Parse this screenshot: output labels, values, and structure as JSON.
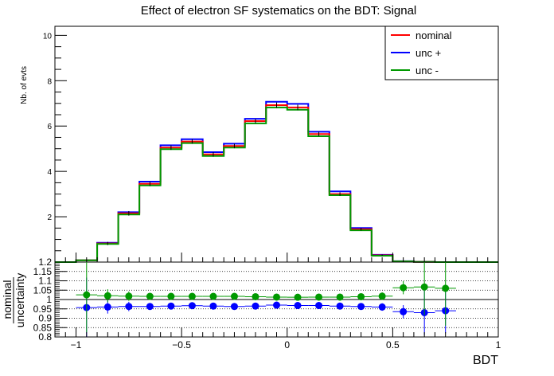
{
  "chart_data": {
    "type": "line",
    "title": "Effect of electron SF systematics on the BDT: Signal",
    "ylabel": "Nb. of evts",
    "xlabel": "BDT",
    "ratio_ylabel_num": "nominal",
    "ratio_ylabel_den": "uncertainty",
    "xlim": [
      -1.1,
      1.0
    ],
    "ylim": [
      0,
      10.4
    ],
    "ratio_ylim": [
      0.8,
      1.2
    ],
    "x_ticks": [
      -1,
      -0.5,
      0,
      0.5,
      1
    ],
    "x_tick_labels": [
      "−1",
      "−0.5",
      "0",
      "0.5",
      "1"
    ],
    "y_ticks": [
      2,
      4,
      6,
      8,
      10
    ],
    "y_tick_labels": [
      "2",
      "4",
      "6",
      "8",
      "10"
    ],
    "ratio_ticks": [
      0.8,
      0.85,
      0.9,
      0.95,
      1,
      1.05,
      1.1,
      1.15,
      1.2
    ],
    "ratio_tick_labels": [
      "0.8",
      "0.85",
      "0.9",
      "0.95",
      "1",
      "1.05",
      "1.1",
      "1.15",
      "1.2"
    ],
    "legend": {
      "position": "top-right",
      "entries": [
        "nominal",
        "unc +",
        "unc -"
      ]
    },
    "bin_edges": [
      -1.1,
      -1.0,
      -0.9,
      -0.8,
      -0.7,
      -0.6,
      -0.5,
      -0.4,
      -0.3,
      -0.2,
      -0.1,
      0.0,
      0.1,
      0.2,
      0.3,
      0.4,
      0.5,
      0.6,
      0.7,
      0.8,
      0.9,
      1.0
    ],
    "series": [
      {
        "name": "nominal",
        "color": "#ff0000",
        "values": [
          0.0,
          0.08,
          0.82,
          2.15,
          3.45,
          5.05,
          5.32,
          4.75,
          5.12,
          6.22,
          6.92,
          6.82,
          5.65,
          3.0,
          1.45,
          0.3,
          0.03,
          0.01,
          0.0,
          0.0,
          0.0
        ]
      },
      {
        "name": "unc +",
        "color": "#0000ff",
        "values": [
          0.0,
          0.08,
          0.85,
          2.2,
          3.55,
          5.15,
          5.42,
          4.85,
          5.22,
          6.32,
          7.07,
          6.98,
          5.75,
          3.12,
          1.5,
          0.32,
          0.04,
          0.01,
          0.0,
          0.0,
          0.0
        ]
      },
      {
        "name": "unc -",
        "color": "#009900",
        "values": [
          0.0,
          0.08,
          0.8,
          2.1,
          3.38,
          4.98,
          5.25,
          4.68,
          5.05,
          6.12,
          6.82,
          6.72,
          5.55,
          2.95,
          1.4,
          0.28,
          0.03,
          0.01,
          0.0,
          0.0,
          0.0
        ]
      }
    ],
    "stat_errors": [
      0.0,
      0.03,
      0.07,
      0.1,
      0.1,
      0.1,
      0.1,
      0.1,
      0.1,
      0.1,
      0.12,
      0.12,
      0.1,
      0.08,
      0.06,
      0.03,
      0.02,
      0.01,
      0.0,
      0.0,
      0.0
    ],
    "ratio_series": [
      {
        "name": "unc +",
        "color": "#0000ff",
        "x": [
          -0.95,
          -0.85,
          -0.75,
          -0.65,
          -0.55,
          -0.45,
          -0.35,
          -0.25,
          -0.15,
          -0.05,
          0.05,
          0.15,
          0.25,
          0.35,
          0.45,
          0.55,
          0.65,
          0.75
        ],
        "values": [
          0.957,
          0.96,
          0.963,
          0.963,
          0.965,
          0.967,
          0.965,
          0.963,
          0.965,
          0.97,
          0.968,
          0.968,
          0.965,
          0.963,
          0.96,
          0.935,
          0.93,
          0.94
        ],
        "errors": [
          0.16,
          0.035,
          0.025,
          0.015,
          0.012,
          0.012,
          0.012,
          0.012,
          0.012,
          0.012,
          0.012,
          0.012,
          0.012,
          0.015,
          0.02,
          0.035,
          0.12,
          0.12
        ]
      },
      {
        "name": "unc -",
        "color": "#009900",
        "x": [
          -0.95,
          -0.85,
          -0.75,
          -0.65,
          -0.55,
          -0.45,
          -0.35,
          -0.25,
          -0.15,
          -0.05,
          0.05,
          0.15,
          0.25,
          0.35,
          0.45,
          0.55,
          0.65,
          0.75
        ],
        "values": [
          1.025,
          1.02,
          1.018,
          1.017,
          1.017,
          1.017,
          1.017,
          1.017,
          1.015,
          1.013,
          1.012,
          1.013,
          1.013,
          1.015,
          1.018,
          1.063,
          1.067,
          1.06
        ],
        "errors": [
          0.2,
          0.035,
          0.025,
          0.015,
          0.012,
          0.012,
          0.012,
          0.012,
          0.012,
          0.012,
          0.012,
          0.012,
          0.012,
          0.015,
          0.02,
          0.035,
          0.15,
          0.2
        ]
      }
    ],
    "grid": "ratio-dotted"
  }
}
